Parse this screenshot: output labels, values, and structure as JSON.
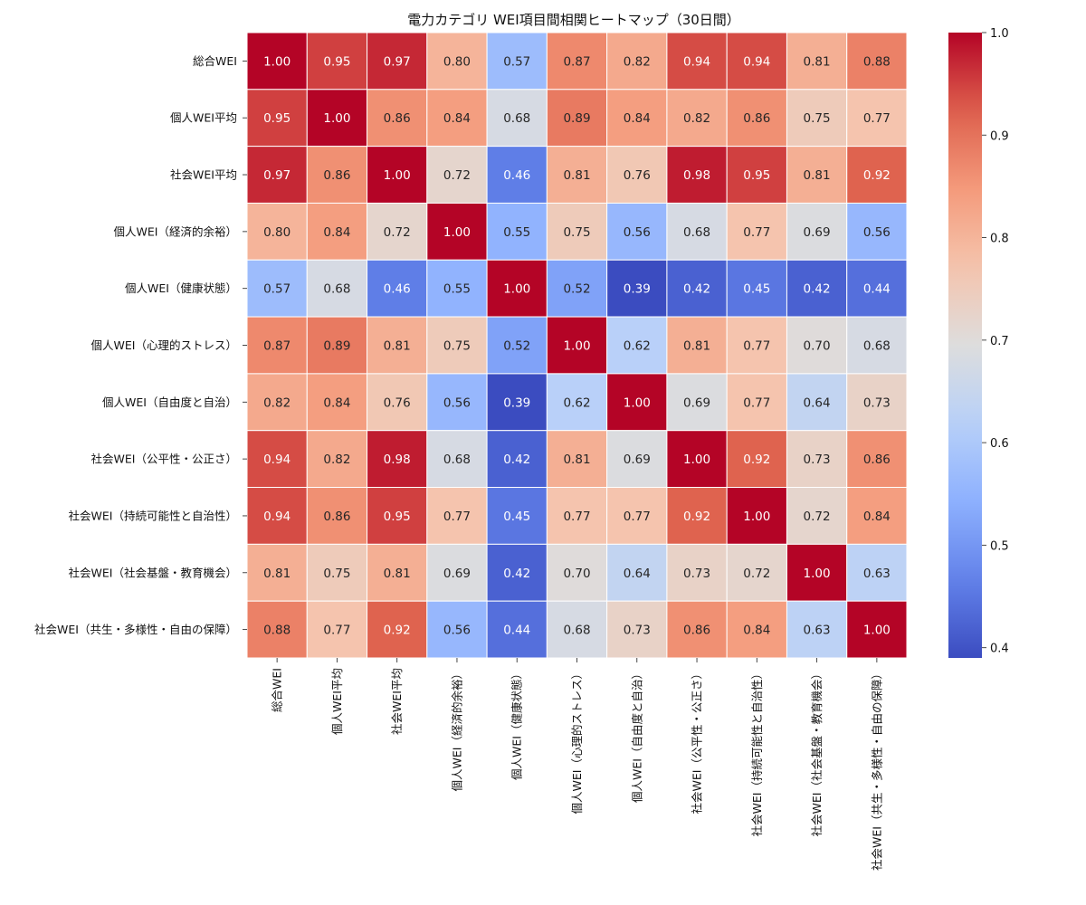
{
  "chart_data": {
    "type": "heatmap",
    "title": "電力カテゴリ WEI項目間相関ヒートマップ（30日間）",
    "labels": [
      "総合WEI",
      "個人WEI平均",
      "社会WEI平均",
      "個人WEI（経済的余裕）",
      "個人WEI（健康状態）",
      "個人WEI（心理的ストレス）",
      "個人WEI（自由度と自治）",
      "社会WEI（公平性・公正さ）",
      "社会WEI（持続可能性と自治性）",
      "社会WEI（社会基盤・教育機会）",
      "社会WEI（共生・多様性・自由の保障）"
    ],
    "values": [
      [
        1.0,
        0.95,
        0.97,
        0.8,
        0.57,
        0.87,
        0.82,
        0.94,
        0.94,
        0.81,
        0.88
      ],
      [
        0.95,
        1.0,
        0.86,
        0.84,
        0.68,
        0.89,
        0.84,
        0.82,
        0.86,
        0.75,
        0.77
      ],
      [
        0.97,
        0.86,
        1.0,
        0.72,
        0.46,
        0.81,
        0.76,
        0.98,
        0.95,
        0.81,
        0.92
      ],
      [
        0.8,
        0.84,
        0.72,
        1.0,
        0.55,
        0.75,
        0.56,
        0.68,
        0.77,
        0.69,
        0.56
      ],
      [
        0.57,
        0.68,
        0.46,
        0.55,
        1.0,
        0.52,
        0.39,
        0.42,
        0.45,
        0.42,
        0.44
      ],
      [
        0.87,
        0.89,
        0.81,
        0.75,
        0.52,
        1.0,
        0.62,
        0.81,
        0.77,
        0.7,
        0.68
      ],
      [
        0.82,
        0.84,
        0.76,
        0.56,
        0.39,
        0.62,
        1.0,
        0.69,
        0.77,
        0.64,
        0.73
      ],
      [
        0.94,
        0.82,
        0.98,
        0.68,
        0.42,
        0.81,
        0.69,
        1.0,
        0.92,
        0.73,
        0.86
      ],
      [
        0.94,
        0.86,
        0.95,
        0.77,
        0.45,
        0.77,
        0.77,
        0.92,
        1.0,
        0.72,
        0.84
      ],
      [
        0.81,
        0.75,
        0.81,
        0.69,
        0.42,
        0.7,
        0.64,
        0.73,
        0.72,
        1.0,
        0.63
      ],
      [
        0.88,
        0.77,
        0.92,
        0.56,
        0.44,
        0.68,
        0.73,
        0.86,
        0.84,
        0.63,
        1.0
      ]
    ],
    "value_format": "2 decimals",
    "colormap": "coolwarm",
    "color_range": [
      0.39,
      1.0
    ],
    "colorbar": {
      "ticks": [
        0.4,
        0.5,
        0.6,
        0.7,
        0.8,
        0.9,
        1.0
      ],
      "tick_labels": [
        "0.4",
        "0.5",
        "0.6",
        "0.7",
        "0.8",
        "0.9",
        "1.0"
      ],
      "placement": "right"
    },
    "grid": false
  }
}
